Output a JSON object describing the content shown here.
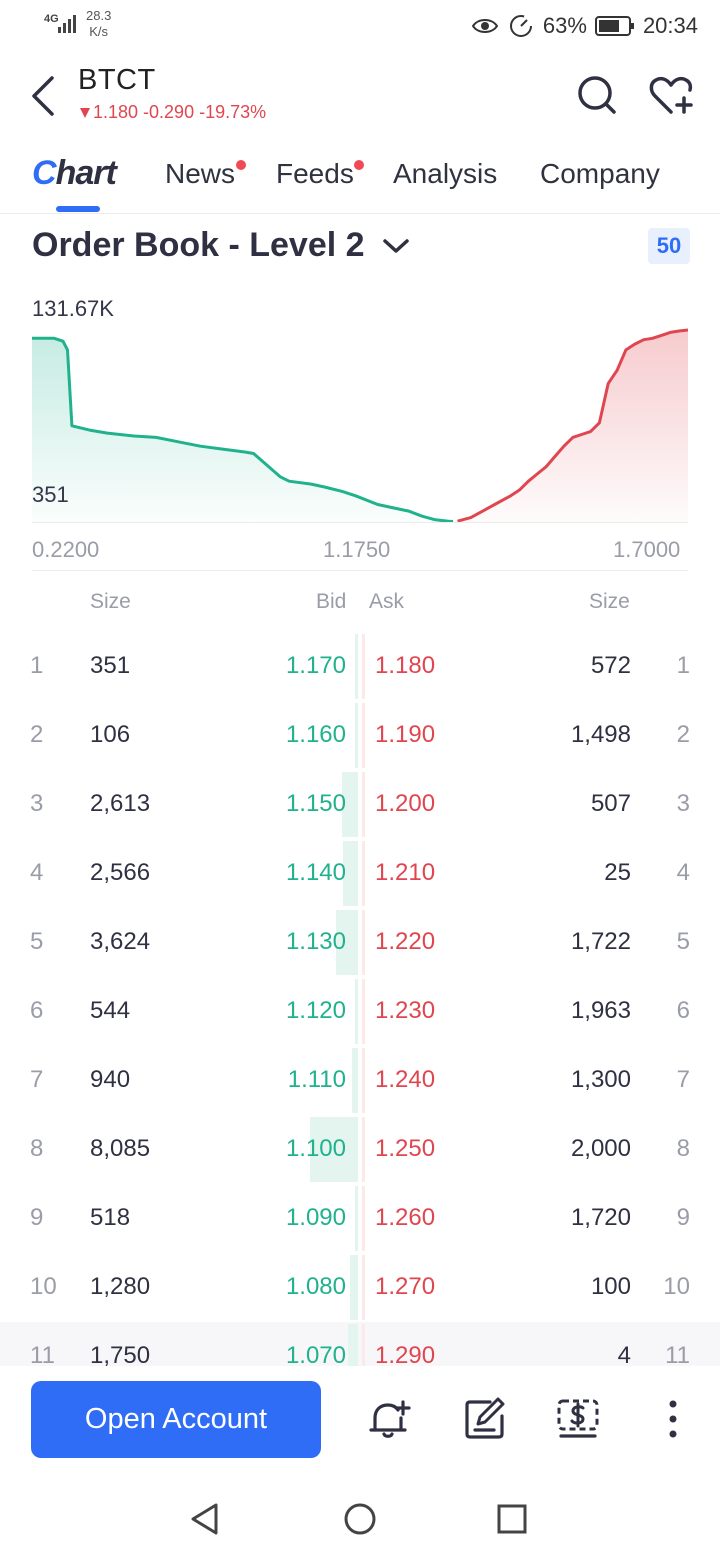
{
  "status_bar": {
    "network": "4G",
    "speed_value": "28.3",
    "speed_unit": "K/s",
    "battery": "63%",
    "time": "20:34"
  },
  "header": {
    "ticker": "BTCT",
    "quote": "1.180 -0.290 -19.73%"
  },
  "tabs": [
    {
      "label": "Chart",
      "active": true
    },
    {
      "label": "News",
      "dot": true
    },
    {
      "label": "Feeds",
      "dot": true
    },
    {
      "label": "Analysis"
    },
    {
      "label": "Company"
    }
  ],
  "order_book": {
    "title": "Order Book - Level 2",
    "depth_badge": "50",
    "chart_max": "131.67K",
    "chart_min": "351",
    "x_labels": [
      "0.2200",
      "1.1750",
      "1.7000"
    ],
    "columns": {
      "size_left": "Size",
      "bid": "Bid",
      "ask": "Ask",
      "size_right": "Size"
    },
    "rows": [
      {
        "i": "1",
        "bid_size": "351",
        "bid": "1.170",
        "ask": "1.180",
        "ask_size": "572"
      },
      {
        "i": "2",
        "bid_size": "106",
        "bid": "1.160",
        "ask": "1.190",
        "ask_size": "1,498"
      },
      {
        "i": "3",
        "bid_size": "2,613",
        "bid": "1.150",
        "ask": "1.200",
        "ask_size": "507"
      },
      {
        "i": "4",
        "bid_size": "2,566",
        "bid": "1.140",
        "ask": "1.210",
        "ask_size": "25"
      },
      {
        "i": "5",
        "bid_size": "3,624",
        "bid": "1.130",
        "ask": "1.220",
        "ask_size": "1,722"
      },
      {
        "i": "6",
        "bid_size": "544",
        "bid": "1.120",
        "ask": "1.230",
        "ask_size": "1,963"
      },
      {
        "i": "7",
        "bid_size": "940",
        "bid": "1.110",
        "ask": "1.240",
        "ask_size": "1,300"
      },
      {
        "i": "8",
        "bid_size": "8,085",
        "bid": "1.100",
        "ask": "1.250",
        "ask_size": "2,000"
      },
      {
        "i": "9",
        "bid_size": "518",
        "bid": "1.090",
        "ask": "1.260",
        "ask_size": "1,720"
      },
      {
        "i": "10",
        "bid_size": "1,280",
        "bid": "1.080",
        "ask": "1.270",
        "ask_size": "100"
      },
      {
        "i": "11",
        "bid_size": "1,750",
        "bid": "1.070",
        "ask": "1.290",
        "ask_size": "4"
      }
    ]
  },
  "actions": {
    "open_account": "Open Account"
  },
  "colors": {
    "accent": "#2f6df6",
    "bid": "#1fb28d",
    "ask": "#e0464f"
  },
  "chart_data": {
    "type": "area",
    "ylim": [
      351,
      131670
    ],
    "x_labels": [
      "0.2200",
      "1.1750",
      "1.7000"
    ],
    "series": [
      {
        "side": "bid",
        "x": [
          0.22,
          0.25,
          0.27,
          0.29,
          0.3,
          0.31,
          0.35,
          0.39,
          0.45,
          0.5,
          0.55,
          0.6,
          0.65,
          0.7,
          0.72,
          0.78,
          0.8,
          0.85,
          0.88,
          0.92,
          0.95,
          1.0,
          1.03,
          1.07,
          1.1,
          1.13,
          1.16,
          1.17
        ],
        "y": [
          126000,
          126000,
          126000,
          124000,
          118000,
          66000,
          63000,
          61000,
          59000,
          58000,
          55000,
          52000,
          50000,
          48000,
          47000,
          31000,
          28000,
          26000,
          24000,
          21000,
          18000,
          12000,
          10000,
          7500,
          4000,
          1500,
          500,
          351
        ]
      },
      {
        "side": "ask",
        "x": [
          1.18,
          1.21,
          1.24,
          1.27,
          1.3,
          1.32,
          1.34,
          1.36,
          1.38,
          1.4,
          1.42,
          1.44,
          1.46,
          1.48,
          1.5,
          1.52,
          1.54,
          1.56,
          1.58,
          1.6,
          1.62,
          1.64,
          1.66,
          1.68,
          1.7
        ],
        "y": [
          572,
          3000,
          8000,
          13000,
          18000,
          22000,
          28000,
          33000,
          38000,
          45000,
          52000,
          58000,
          60000,
          62000,
          68000,
          95000,
          104000,
          118000,
          122000,
          125000,
          126000,
          128000,
          130000,
          131000,
          131670
        ]
      }
    ]
  }
}
